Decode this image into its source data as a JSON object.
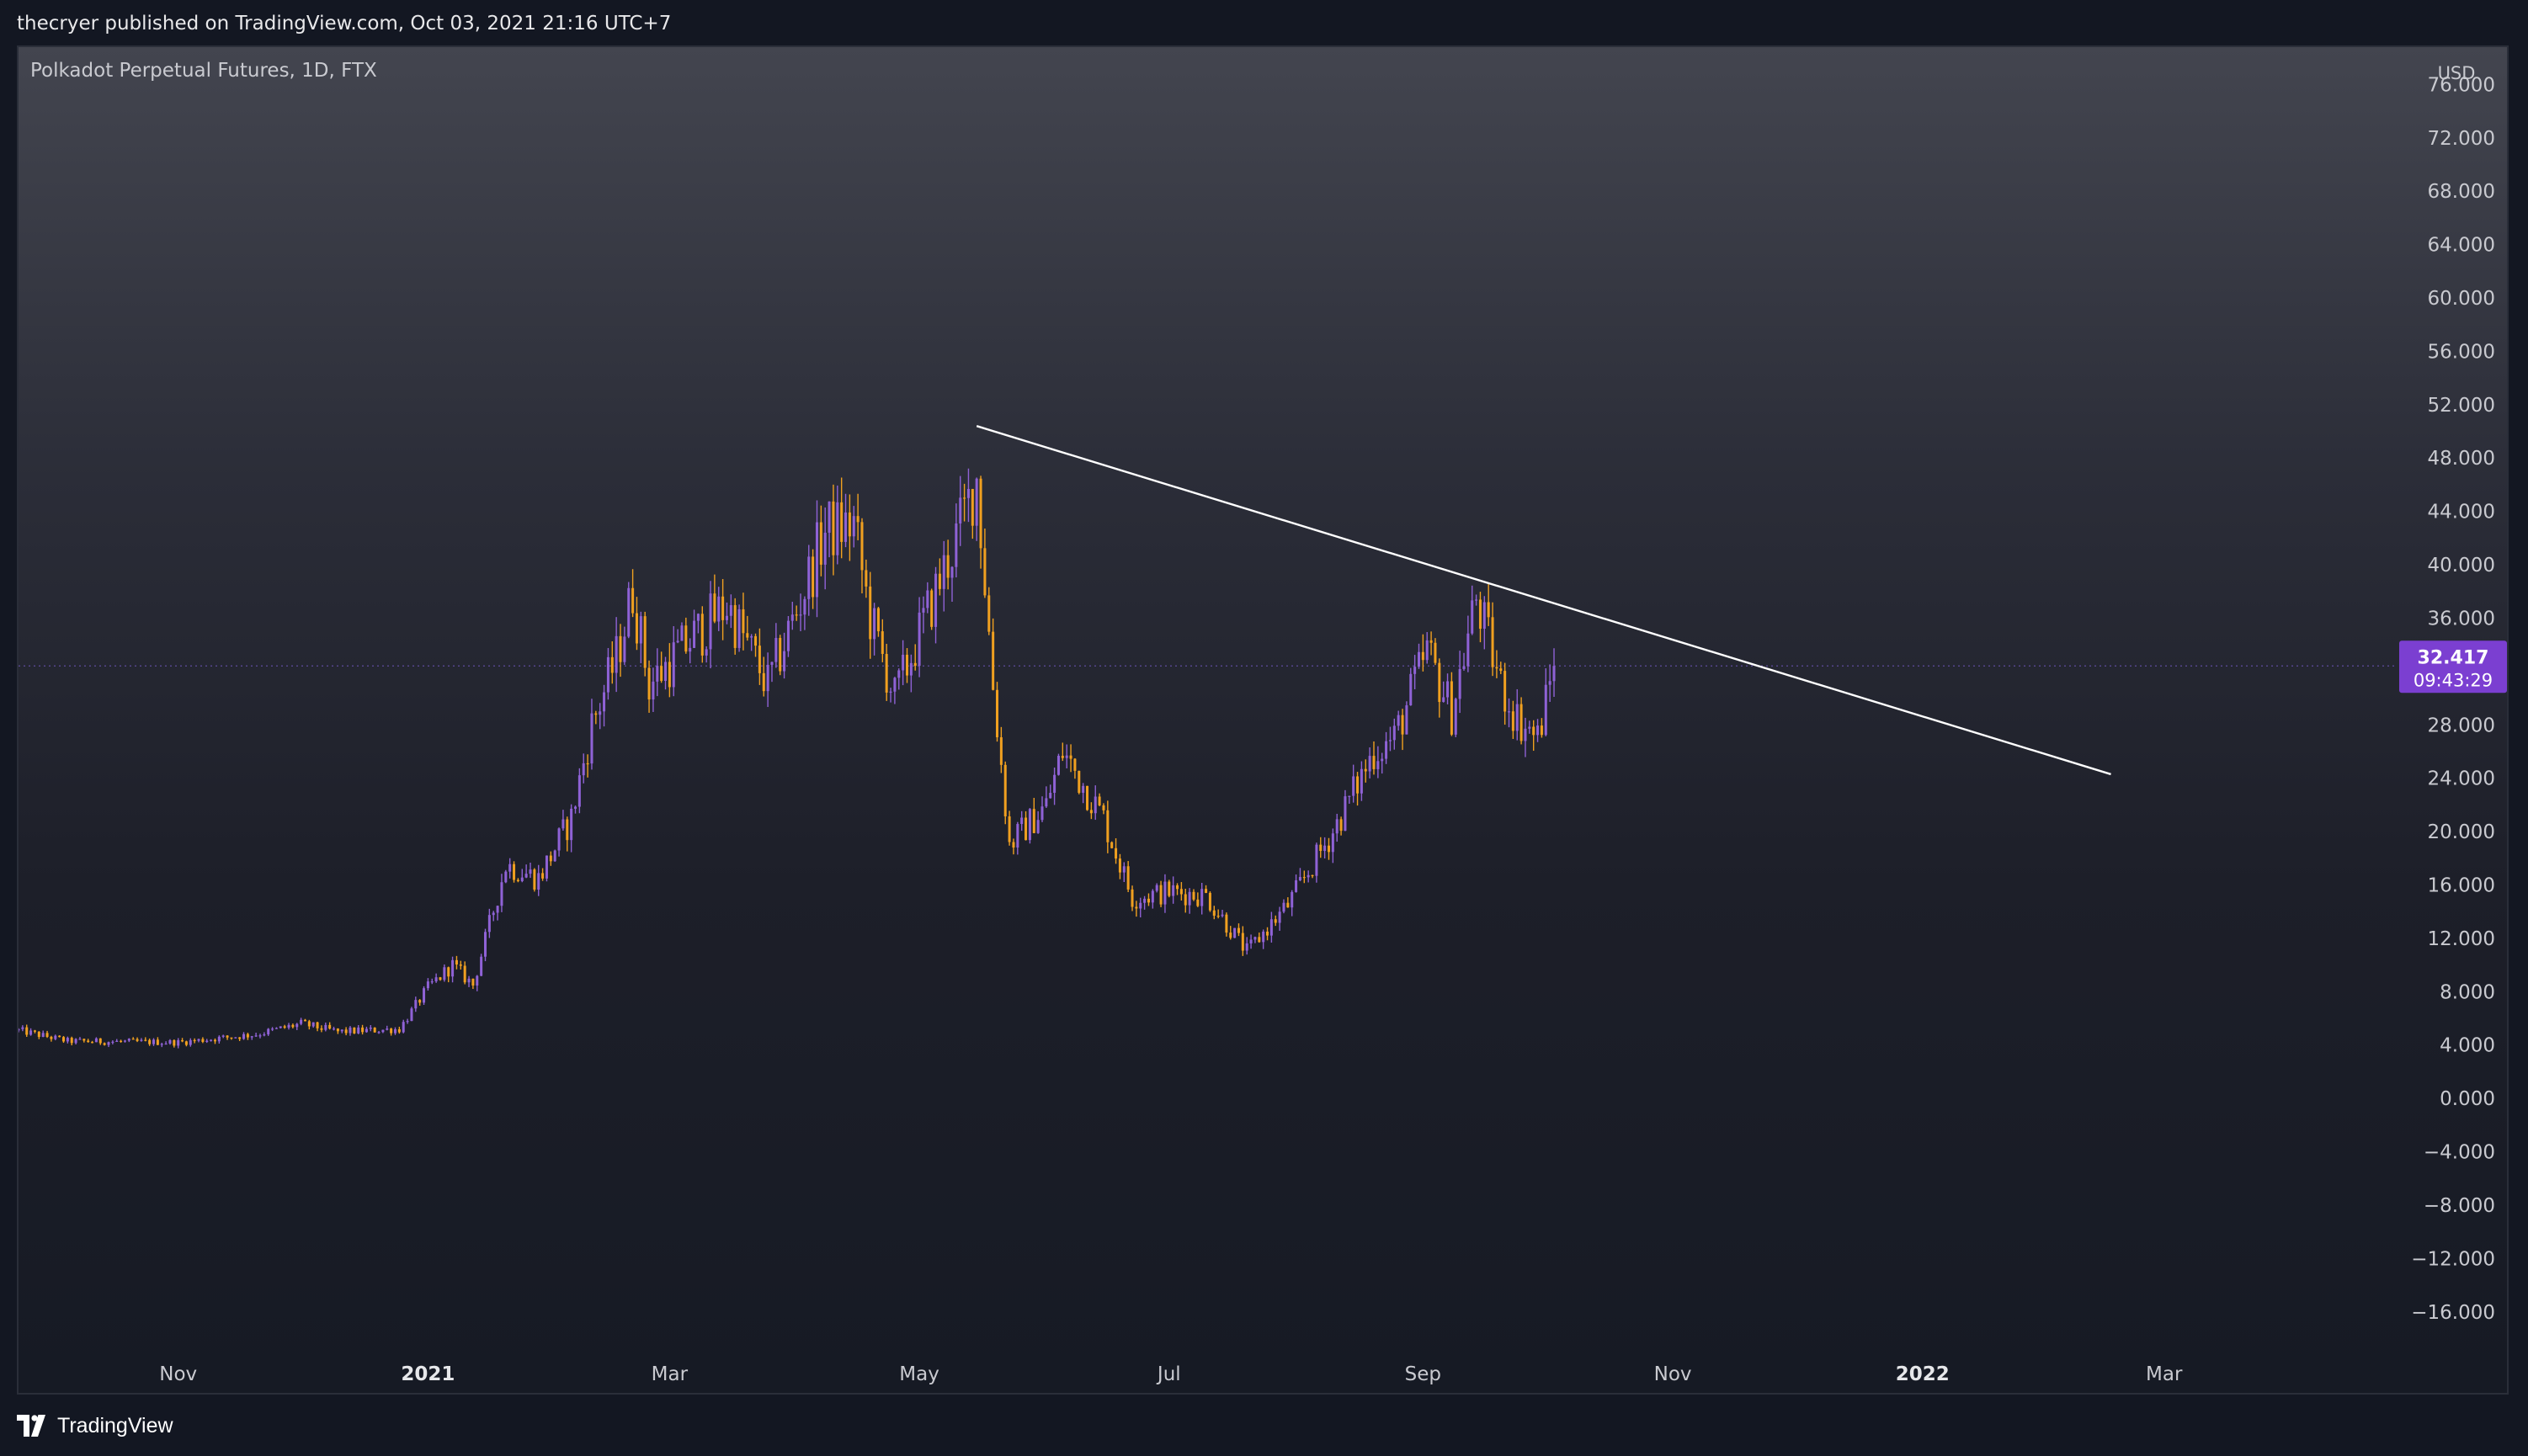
{
  "header": {
    "publish_text": "thecryer published on TradingView.com, Oct 03, 2021 21:16 UTC+7"
  },
  "footer": {
    "brand_text": "TradingView"
  },
  "chart_data": {
    "type": "candlestick",
    "title": "Polkadot Perpetual Futures, 1D, FTX",
    "currency": "USD",
    "y_ticks": [
      "76.000",
      "72.000",
      "68.000",
      "64.000",
      "60.000",
      "56.000",
      "52.000",
      "48.000",
      "44.000",
      "40.000",
      "36.000",
      "32.000",
      "28.000",
      "24.000",
      "20.000",
      "16.000",
      "12.000",
      "8.000",
      "4.000",
      "0.000",
      "−4.000",
      "−8.000",
      "−12.000",
      "−16.000"
    ],
    "ylim": [
      -18.6,
      78.8
    ],
    "x_labels": [
      {
        "text": "Nov",
        "date": "2020-11-01",
        "bold": false
      },
      {
        "text": "2021",
        "date": "2021-01-01",
        "bold": true
      },
      {
        "text": "Mar",
        "date": "2021-03-01",
        "bold": false
      },
      {
        "text": "May",
        "date": "2021-05-01",
        "bold": false
      },
      {
        "text": "Jul",
        "date": "2021-07-01",
        "bold": false
      },
      {
        "text": "Sep",
        "date": "2021-09-01",
        "bold": false
      },
      {
        "text": "Nov",
        "date": "2021-11-01",
        "bold": false
      },
      {
        "text": "2022",
        "date": "2022-01-01",
        "bold": true
      },
      {
        "text": "Mar",
        "date": "2022-03-01",
        "bold": false
      }
    ],
    "xlim": [
      "2020-09-23",
      "2022-04-27"
    ],
    "last_price": {
      "value": "32.417",
      "countdown": "09:43:29",
      "price": 32.417
    },
    "up_color": "#8f62d6",
    "down_color": "#f0a020",
    "trendline": {
      "start": {
        "date": "2021-05-15",
        "price": 50.4
      },
      "end": {
        "date": "2022-02-16",
        "price": 24.3
      }
    },
    "price_path": [
      {
        "date": "2020-09-23",
        "close": 5.1
      },
      {
        "date": "2020-10-05",
        "close": 4.3
      },
      {
        "date": "2020-11-01",
        "close": 4.2
      },
      {
        "date": "2020-11-20",
        "close": 4.8
      },
      {
        "date": "2020-12-01",
        "close": 5.6
      },
      {
        "date": "2020-12-10",
        "close": 5.0
      },
      {
        "date": "2020-12-25",
        "close": 5.2
      },
      {
        "date": "2021-01-01",
        "close": 8.3
      },
      {
        "date": "2021-01-07",
        "close": 10.0
      },
      {
        "date": "2021-01-12",
        "close": 8.5
      },
      {
        "date": "2021-01-20",
        "close": 17.5
      },
      {
        "date": "2021-01-28",
        "close": 16.5
      },
      {
        "date": "2021-02-05",
        "close": 21.0
      },
      {
        "date": "2021-02-10",
        "close": 28.0
      },
      {
        "date": "2021-02-16",
        "close": 33.0
      },
      {
        "date": "2021-02-20",
        "close": 38.0
      },
      {
        "date": "2021-02-24",
        "close": 31.0
      },
      {
        "date": "2021-03-05",
        "close": 34.0
      },
      {
        "date": "2021-03-15",
        "close": 37.0
      },
      {
        "date": "2021-03-25",
        "close": 31.0
      },
      {
        "date": "2021-04-01",
        "close": 36.5
      },
      {
        "date": "2021-04-08",
        "close": 42.5
      },
      {
        "date": "2021-04-15",
        "close": 43.0
      },
      {
        "date": "2021-04-19",
        "close": 36.0
      },
      {
        "date": "2021-04-25",
        "close": 30.0
      },
      {
        "date": "2021-05-05",
        "close": 38.0
      },
      {
        "date": "2021-05-10",
        "close": 42.0
      },
      {
        "date": "2021-05-15",
        "close": 46.5
      },
      {
        "date": "2021-05-19",
        "close": 31.0
      },
      {
        "date": "2021-05-23",
        "close": 19.0
      },
      {
        "date": "2021-06-01",
        "close": 22.0
      },
      {
        "date": "2021-06-05",
        "close": 26.0
      },
      {
        "date": "2021-06-15",
        "close": 21.0
      },
      {
        "date": "2021-06-22",
        "close": 15.0
      },
      {
        "date": "2021-07-01",
        "close": 15.5
      },
      {
        "date": "2021-07-10",
        "close": 15.2
      },
      {
        "date": "2021-07-20",
        "close": 11.0
      },
      {
        "date": "2021-07-30",
        "close": 14.5
      },
      {
        "date": "2021-08-10",
        "close": 20.0
      },
      {
        "date": "2021-08-20",
        "close": 26.0
      },
      {
        "date": "2021-08-25",
        "close": 27.0
      },
      {
        "date": "2021-09-02",
        "close": 33.5
      },
      {
        "date": "2021-09-08",
        "close": 29.0
      },
      {
        "date": "2021-09-14",
        "close": 37.5
      },
      {
        "date": "2021-09-20",
        "close": 31.0
      },
      {
        "date": "2021-09-24",
        "close": 28.5
      },
      {
        "date": "2021-09-29",
        "close": 27.0
      },
      {
        "date": "2021-10-03",
        "close": 32.4
      }
    ]
  }
}
